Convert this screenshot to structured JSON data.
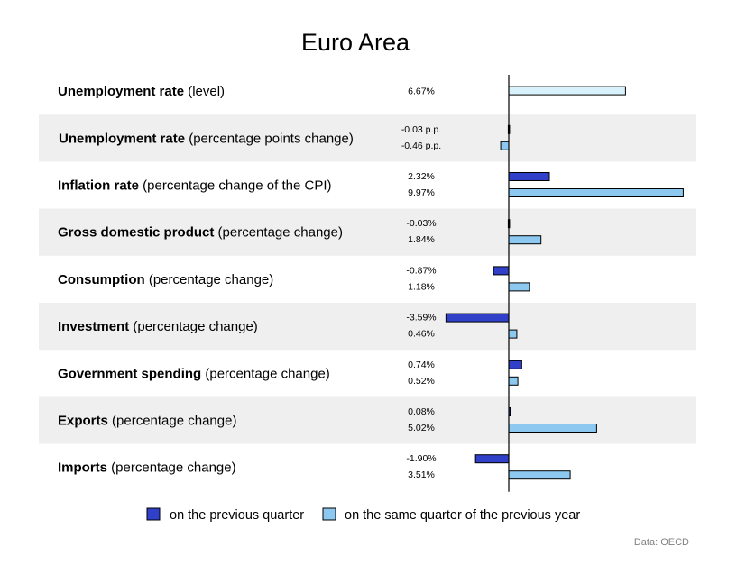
{
  "chart_data": {
    "type": "bar",
    "orientation": "horizontal",
    "title": "Euro Area",
    "categories": [
      {
        "bold": "Unemployment rate",
        "rest": " (level)"
      },
      {
        "bold": "Unemployment rate",
        "rest": " (percentage points change)"
      },
      {
        "bold": "Inflation rate",
        "rest": " (percentage change of the CPI)"
      },
      {
        "bold": "Gross domestic product",
        "rest": " (percentage change)"
      },
      {
        "bold": "Consumption",
        "rest": " (percentage change)"
      },
      {
        "bold": "Investment",
        "rest": " (percentage change)"
      },
      {
        "bold": "Government spending",
        "rest": " (percentage change)"
      },
      {
        "bold": "Exports",
        "rest": " (percentage change)"
      },
      {
        "bold": "Imports",
        "rest": " (percentage change)"
      }
    ],
    "series": [
      {
        "name": "on the previous quarter",
        "color": "#3040c8",
        "values": [
          null,
          -0.03,
          2.32,
          -0.03,
          -0.87,
          -3.59,
          0.74,
          0.08,
          -1.9
        ],
        "labels": [
          "",
          "-0.03 p.p.",
          "2.32%",
          "-0.03%",
          "-0.87%",
          "-3.59%",
          "0.74%",
          "0.08%",
          "-1.90%"
        ]
      },
      {
        "name": "on the same quarter of the previous year",
        "color": "#8cc8f0",
        "values": [
          6.67,
          -0.46,
          9.97,
          1.84,
          1.18,
          0.46,
          0.52,
          5.02,
          3.51
        ],
        "labels": [
          "6.67%",
          "-0.46 p.p.",
          "9.97%",
          "1.84%",
          "1.18%",
          "0.46%",
          "0.52%",
          "5.02%",
          "3.51%"
        ]
      }
    ],
    "level_row_color": "#d8f2fc",
    "row_shading": "#efefef",
    "legend_position": "bottom",
    "source": "Data: OECD"
  }
}
